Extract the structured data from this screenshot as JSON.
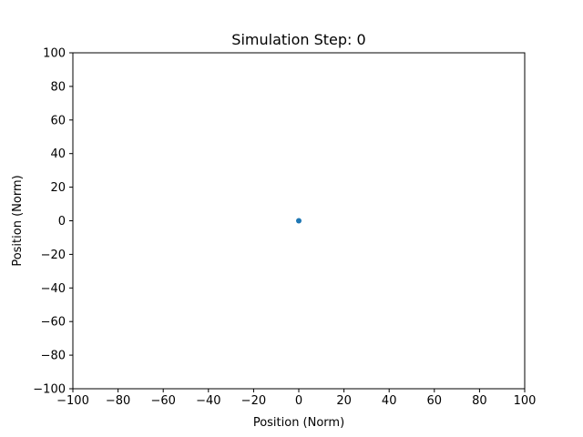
{
  "chart_data": {
    "type": "scatter",
    "title": "Simulation Step: 0",
    "xlabel": "Position (Norm)",
    "ylabel": "Position (Norm)",
    "xlim": [
      -100,
      100
    ],
    "ylim": [
      -100,
      100
    ],
    "xticks": [
      -100,
      -80,
      -60,
      -40,
      -20,
      0,
      20,
      40,
      60,
      80,
      100
    ],
    "yticks": [
      -100,
      -80,
      -60,
      -40,
      -20,
      0,
      20,
      40,
      60,
      80,
      100
    ],
    "grid": false,
    "series": [
      {
        "color": "#1f77b4",
        "points": [
          {
            "x": 0,
            "y": 0
          }
        ]
      }
    ]
  }
}
